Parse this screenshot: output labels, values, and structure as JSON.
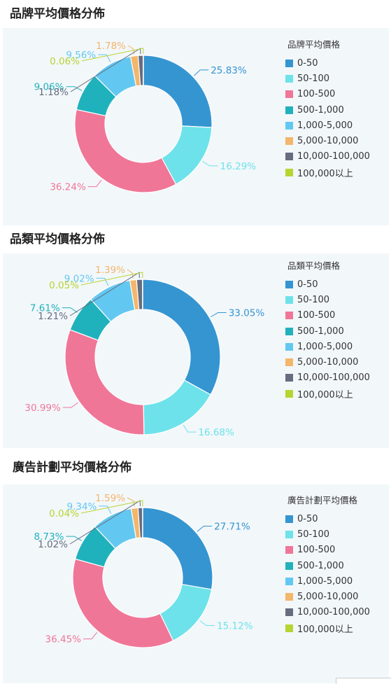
{
  "colors": [
    "#3595d1",
    "#6ee2ea",
    "#f07697",
    "#20b2bc",
    "#63c8f1",
    "#f3b66b",
    "#676c80",
    "#b8d432"
  ],
  "categories": [
    "0-50",
    "50-100",
    "100-500",
    "500-1,000",
    "1,000-5,000",
    "5,000-10,000",
    "10,000-100,000",
    "100,000以上"
  ],
  "chart_data": [
    {
      "type": "pie",
      "title": "品牌平均價格分佈",
      "legend_title": "品牌平均價格",
      "legend_position": "right",
      "donut": true,
      "categories": [
        "0-50",
        "50-100",
        "100-500",
        "500-1,000",
        "1,000-5,000",
        "5,000-10,000",
        "10,000-100,000",
        "100,000以上"
      ],
      "values": [
        25.83,
        16.29,
        36.24,
        9.06,
        9.56,
        1.78,
        1.18,
        0.06
      ],
      "labels": [
        "25.83%",
        "16.29%",
        "36.24%",
        "9.06%",
        "9.56%",
        "1.78%",
        "1.18%",
        "0.06%"
      ]
    },
    {
      "type": "pie",
      "title": "品類平均價格分佈",
      "legend_title": "品類平均價格",
      "legend_position": "right",
      "donut": true,
      "categories": [
        "0-50",
        "50-100",
        "100-500",
        "500-1,000",
        "1,000-5,000",
        "5,000-10,000",
        "10,000-100,000",
        "100,000以上"
      ],
      "values": [
        33.05,
        16.68,
        30.99,
        7.61,
        9.02,
        1.39,
        1.21,
        0.05
      ],
      "labels": [
        "33.05%",
        "16.68%",
        "30.99%",
        "7.61%",
        "9.02%",
        "1.39%",
        "1.21%",
        "0.05%"
      ]
    },
    {
      "type": "pie",
      "title": "廣告計劃平均價格分佈",
      "legend_title": "廣告計劃平均價格",
      "legend_position": "right",
      "donut": true,
      "categories": [
        "0-50",
        "50-100",
        "100-500",
        "500-1,000",
        "1,000-5,000",
        "5,000-10,000",
        "10,000-100,000",
        "100,000以上"
      ],
      "values": [
        27.71,
        15.12,
        36.45,
        8.73,
        9.34,
        1.59,
        1.02,
        0.04
      ],
      "labels": [
        "27.71%",
        "15.12%",
        "36.45%",
        "8.73%",
        "9.34%",
        "1.59%",
        "1.02%",
        "0.04%"
      ]
    }
  ]
}
